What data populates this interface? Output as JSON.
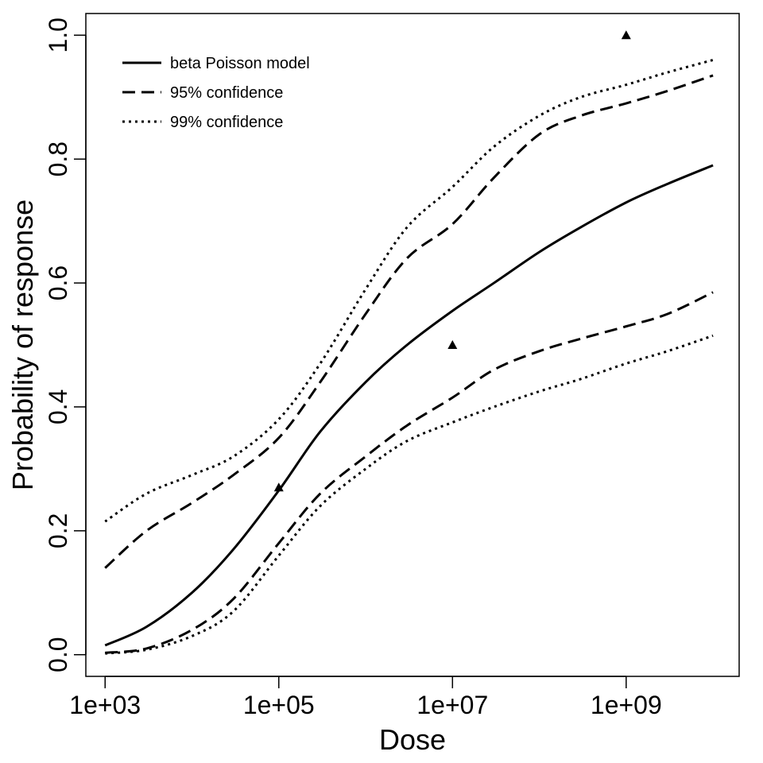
{
  "chart_data": {
    "type": "line",
    "title": "",
    "xlabel": "Dose",
    "ylabel": "Probability of response",
    "x_scale": "log10",
    "xlim": [
      600,
      20000000000
    ],
    "ylim": [
      -0.035,
      1.035
    ],
    "x_ticks": [
      {
        "value": 1000,
        "label": "1e+03"
      },
      {
        "value": 100000,
        "label": "1e+05"
      },
      {
        "value": 10000000,
        "label": "1e+07"
      },
      {
        "value": 1000000000,
        "label": "1e+09"
      }
    ],
    "y_ticks": [
      {
        "value": 0.0,
        "label": "0.0"
      },
      {
        "value": 0.2,
        "label": "0.2"
      },
      {
        "value": 0.4,
        "label": "0.4"
      },
      {
        "value": 0.6,
        "label": "0.6"
      },
      {
        "value": 0.8,
        "label": "0.8"
      },
      {
        "value": 1.0,
        "label": "1.0"
      }
    ],
    "grid": false,
    "legend_position": "top-left",
    "series": [
      {
        "name": "beta Poisson model",
        "style": "solid",
        "x": [
          1000,
          3000,
          10000,
          30000,
          100000,
          300000,
          1000000,
          3000000,
          10000000,
          30000000,
          100000000,
          300000000,
          1000000000,
          3000000000,
          10000000000
        ],
        "y": [
          0.015,
          0.045,
          0.1,
          0.17,
          0.265,
          0.36,
          0.44,
          0.5,
          0.555,
          0.6,
          0.65,
          0.69,
          0.73,
          0.76,
          0.79
        ]
      },
      {
        "name": "95% confidence",
        "style": "dashed",
        "x": [
          1000,
          3000,
          10000,
          30000,
          100000,
          300000,
          1000000,
          3000000,
          10000000,
          30000000,
          100000000,
          300000000,
          1000000000,
          3000000000,
          10000000000
        ],
        "y": [
          0.14,
          0.2,
          0.245,
          0.29,
          0.35,
          0.44,
          0.55,
          0.64,
          0.695,
          0.77,
          0.84,
          0.87,
          0.89,
          0.91,
          0.935
        ]
      },
      {
        "name": "95% confidence",
        "style": "dashed",
        "x": [
          1000,
          3000,
          10000,
          30000,
          100000,
          300000,
          1000000,
          3000000,
          10000000,
          30000000,
          100000000,
          300000000,
          1000000000,
          3000000000,
          10000000000
        ],
        "y": [
          0.003,
          0.01,
          0.04,
          0.09,
          0.18,
          0.26,
          0.32,
          0.37,
          0.415,
          0.46,
          0.49,
          0.51,
          0.53,
          0.55,
          0.585
        ]
      },
      {
        "name": "99% confidence",
        "style": "dotted",
        "x": [
          1000,
          3000,
          10000,
          30000,
          100000,
          300000,
          1000000,
          3000000,
          10000000,
          30000000,
          100000000,
          300000000,
          1000000000,
          3000000000,
          10000000000
        ],
        "y": [
          0.215,
          0.26,
          0.29,
          0.32,
          0.38,
          0.47,
          0.59,
          0.69,
          0.755,
          0.82,
          0.87,
          0.9,
          0.92,
          0.94,
          0.96
        ]
      },
      {
        "name": "99% confidence",
        "style": "dotted",
        "x": [
          1000,
          3000,
          10000,
          30000,
          100000,
          300000,
          1000000,
          3000000,
          10000000,
          30000000,
          100000000,
          300000000,
          1000000000,
          3000000000,
          10000000000
        ],
        "y": [
          0.002,
          0.008,
          0.03,
          0.07,
          0.16,
          0.24,
          0.3,
          0.345,
          0.375,
          0.4,
          0.425,
          0.445,
          0.47,
          0.49,
          0.515
        ]
      }
    ],
    "observed_points": {
      "marker": "triangle",
      "x": [
        100000,
        10000000,
        1000000000
      ],
      "y": [
        0.27,
        0.5,
        1.0
      ]
    },
    "legend": [
      {
        "label": "beta Poisson model",
        "style": "solid"
      },
      {
        "label": "95% confidence",
        "style": "dashed"
      },
      {
        "label": "99% confidence",
        "style": "dotted"
      }
    ]
  }
}
